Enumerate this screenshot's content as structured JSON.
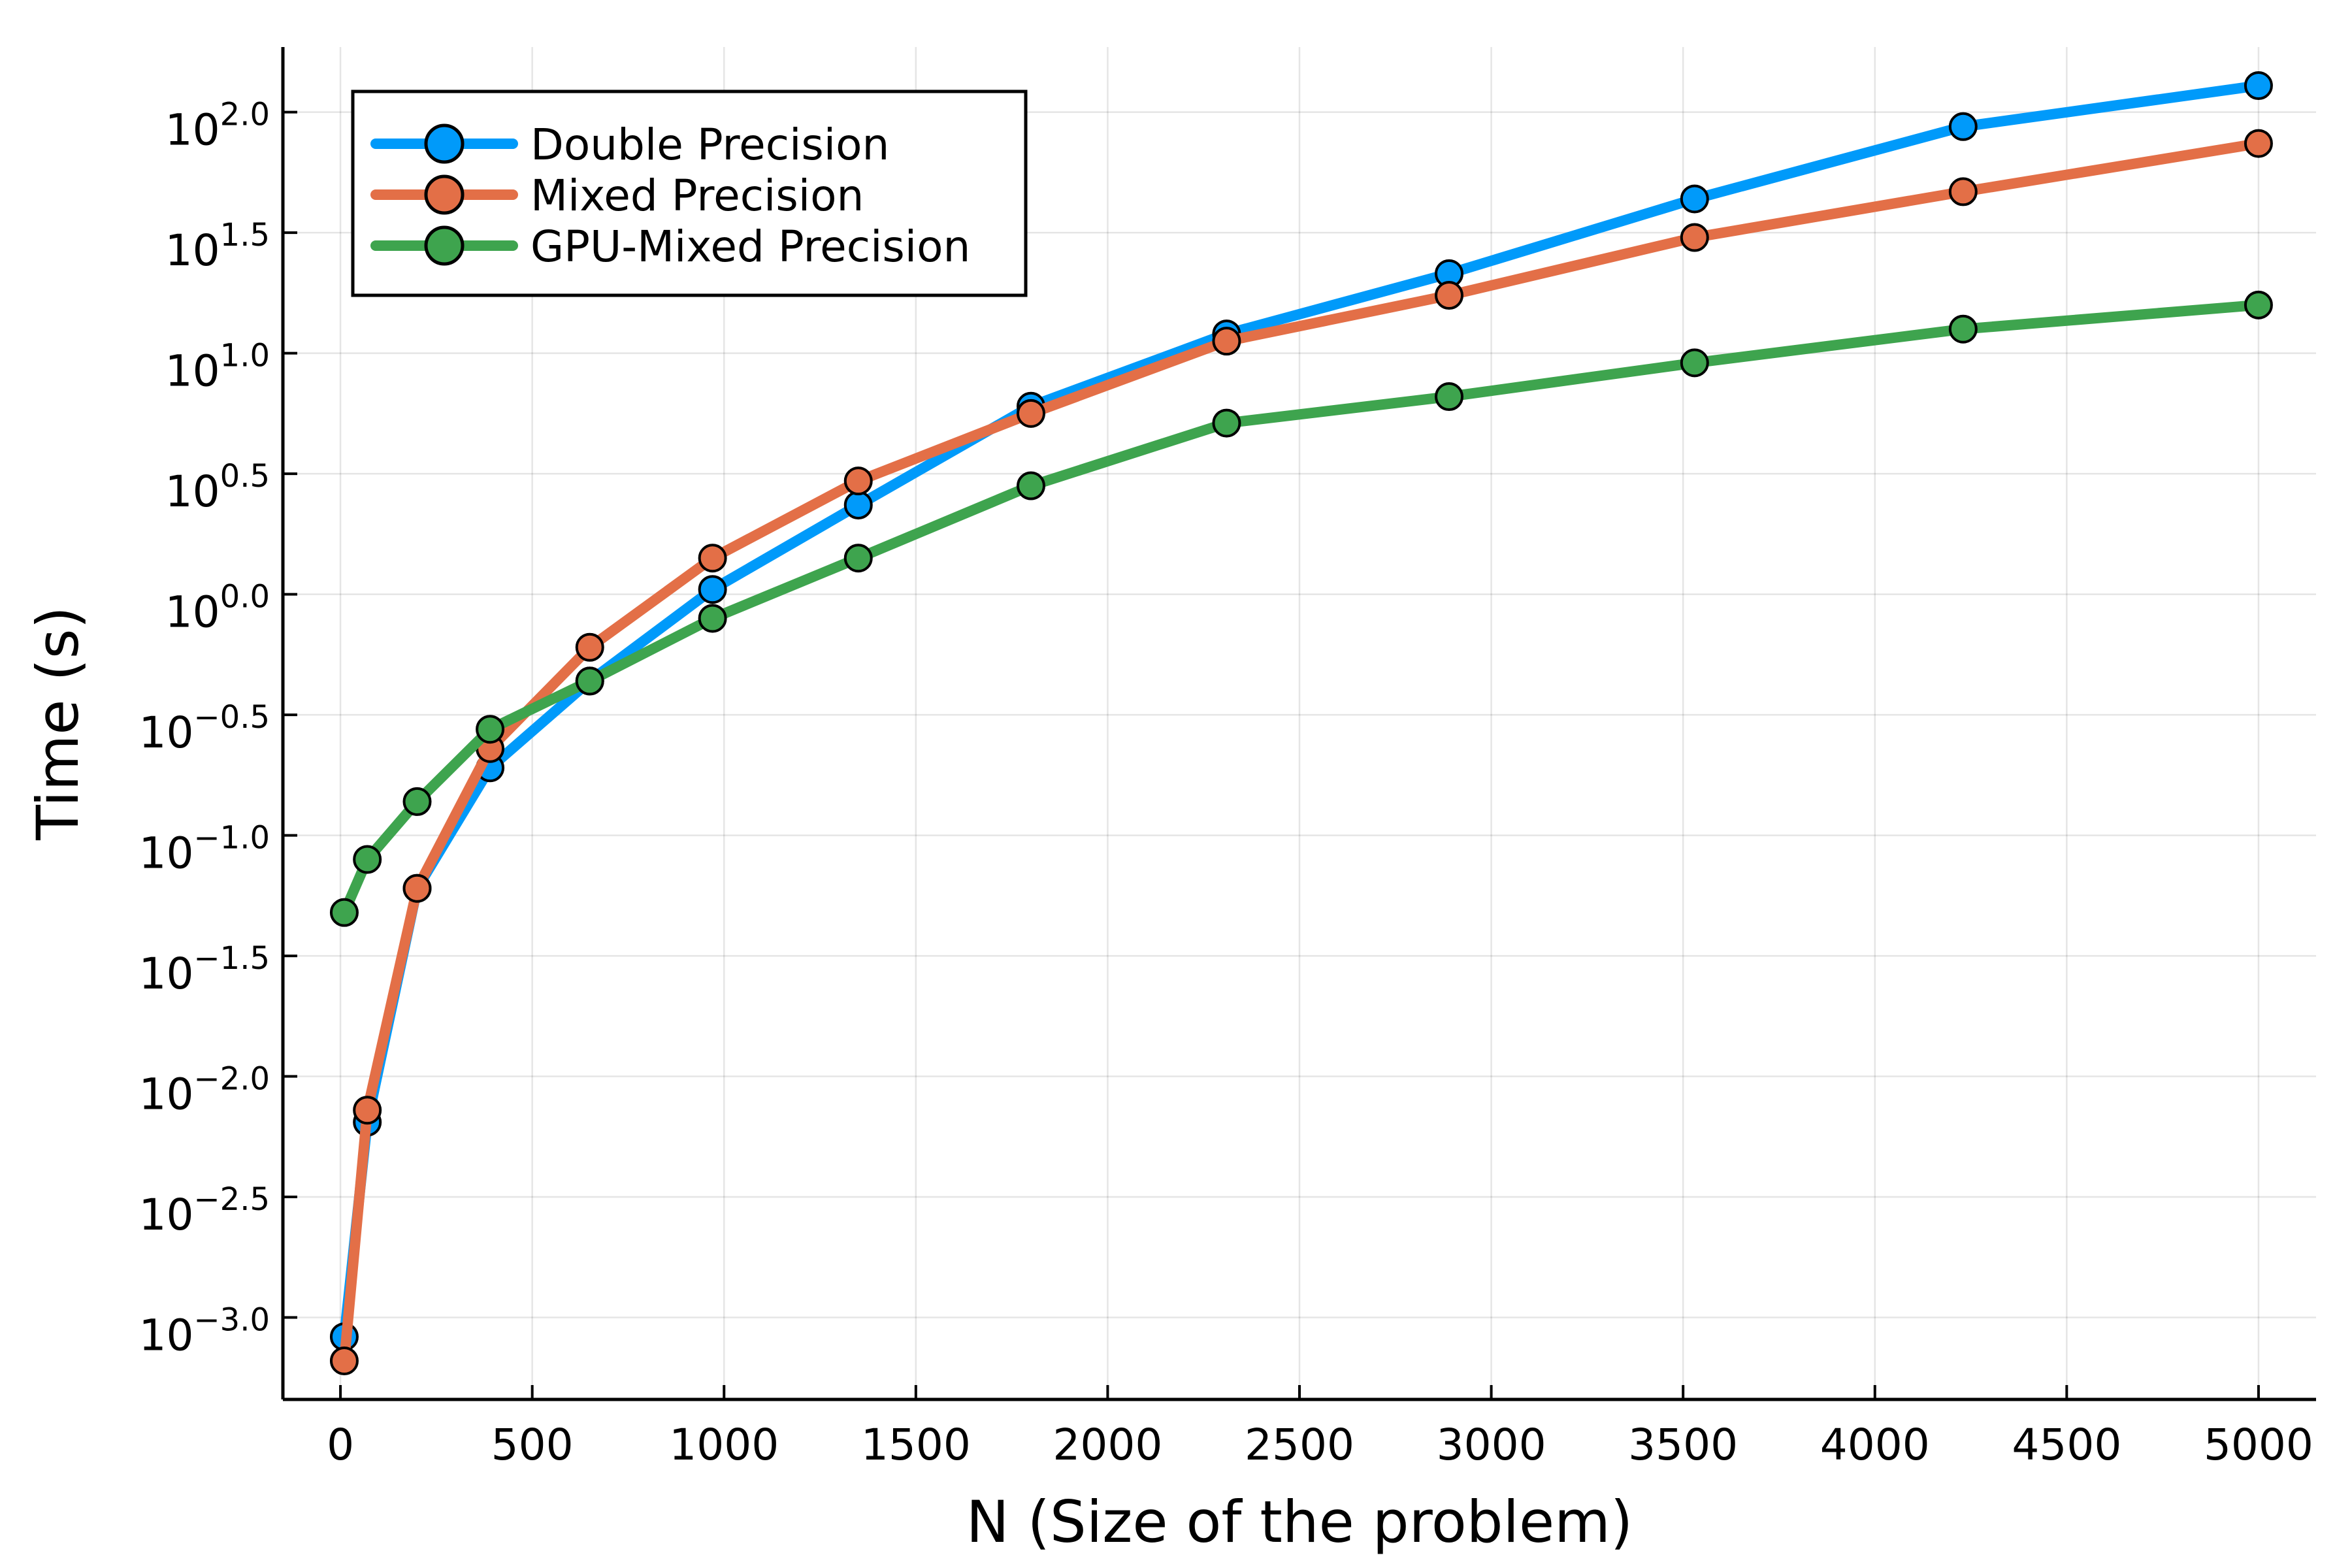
{
  "chart_data": {
    "type": "line",
    "xlabel": "N (Size of the problem)",
    "ylabel": "Time (s)",
    "xscale": "linear",
    "yscale": "log10",
    "xlim": [
      -150,
      5150
    ],
    "ylim_log10": [
      -3.34,
      2.27
    ],
    "xticks": [
      0,
      500,
      1000,
      1500,
      2000,
      2500,
      3000,
      3500,
      4000,
      4500,
      5000
    ],
    "xtick_labels": [
      "0",
      "500",
      "1000",
      "1500",
      "2000",
      "2500",
      "3000",
      "3500",
      "4000",
      "4500",
      "5000"
    ],
    "yticks_log10": [
      -3.0,
      -2.5,
      -2.0,
      -1.5,
      -1.0,
      -0.5,
      0.0,
      0.5,
      1.0,
      1.5,
      2.0
    ],
    "ytick_labels": [
      {
        "base": "10",
        "exp": "−3.0"
      },
      {
        "base": "10",
        "exp": "−2.5"
      },
      {
        "base": "10",
        "exp": "−2.0"
      },
      {
        "base": "10",
        "exp": "−1.5"
      },
      {
        "base": "10",
        "exp": "−1.0"
      },
      {
        "base": "10",
        "exp": "−0.5"
      },
      {
        "base": "10",
        "exp": "0.0"
      },
      {
        "base": "10",
        "exp": "0.5"
      },
      {
        "base": "10",
        "exp": "1.0"
      },
      {
        "base": "10",
        "exp": "1.5"
      },
      {
        "base": "10",
        "exp": "2.0"
      }
    ],
    "grid": true,
    "legend_position": "top-left",
    "x": [
      10,
      70,
      200,
      390,
      650,
      970,
      1350,
      1800,
      2310,
      2890,
      3530,
      4230,
      5000
    ],
    "series": [
      {
        "name": "Double Precision",
        "color": "#009AFA",
        "log10_values": [
          -3.08,
          -2.19,
          -1.22,
          -0.72,
          -0.36,
          0.02,
          0.37,
          0.78,
          1.08,
          1.33,
          1.64,
          1.94,
          2.11
        ]
      },
      {
        "name": "Mixed Precision",
        "color": "#E36F47",
        "log10_values": [
          -3.18,
          -2.14,
          -1.22,
          -0.64,
          -0.22,
          0.15,
          0.47,
          0.75,
          1.05,
          1.24,
          1.48,
          1.67,
          1.87
        ]
      },
      {
        "name": "GPU-Mixed Precision",
        "color": "#3EA44E",
        "log10_values": [
          -1.32,
          -1.1,
          -0.86,
          -0.56,
          -0.36,
          -0.1,
          0.15,
          0.45,
          0.71,
          0.82,
          0.96,
          1.1,
          1.2
        ]
      }
    ]
  }
}
